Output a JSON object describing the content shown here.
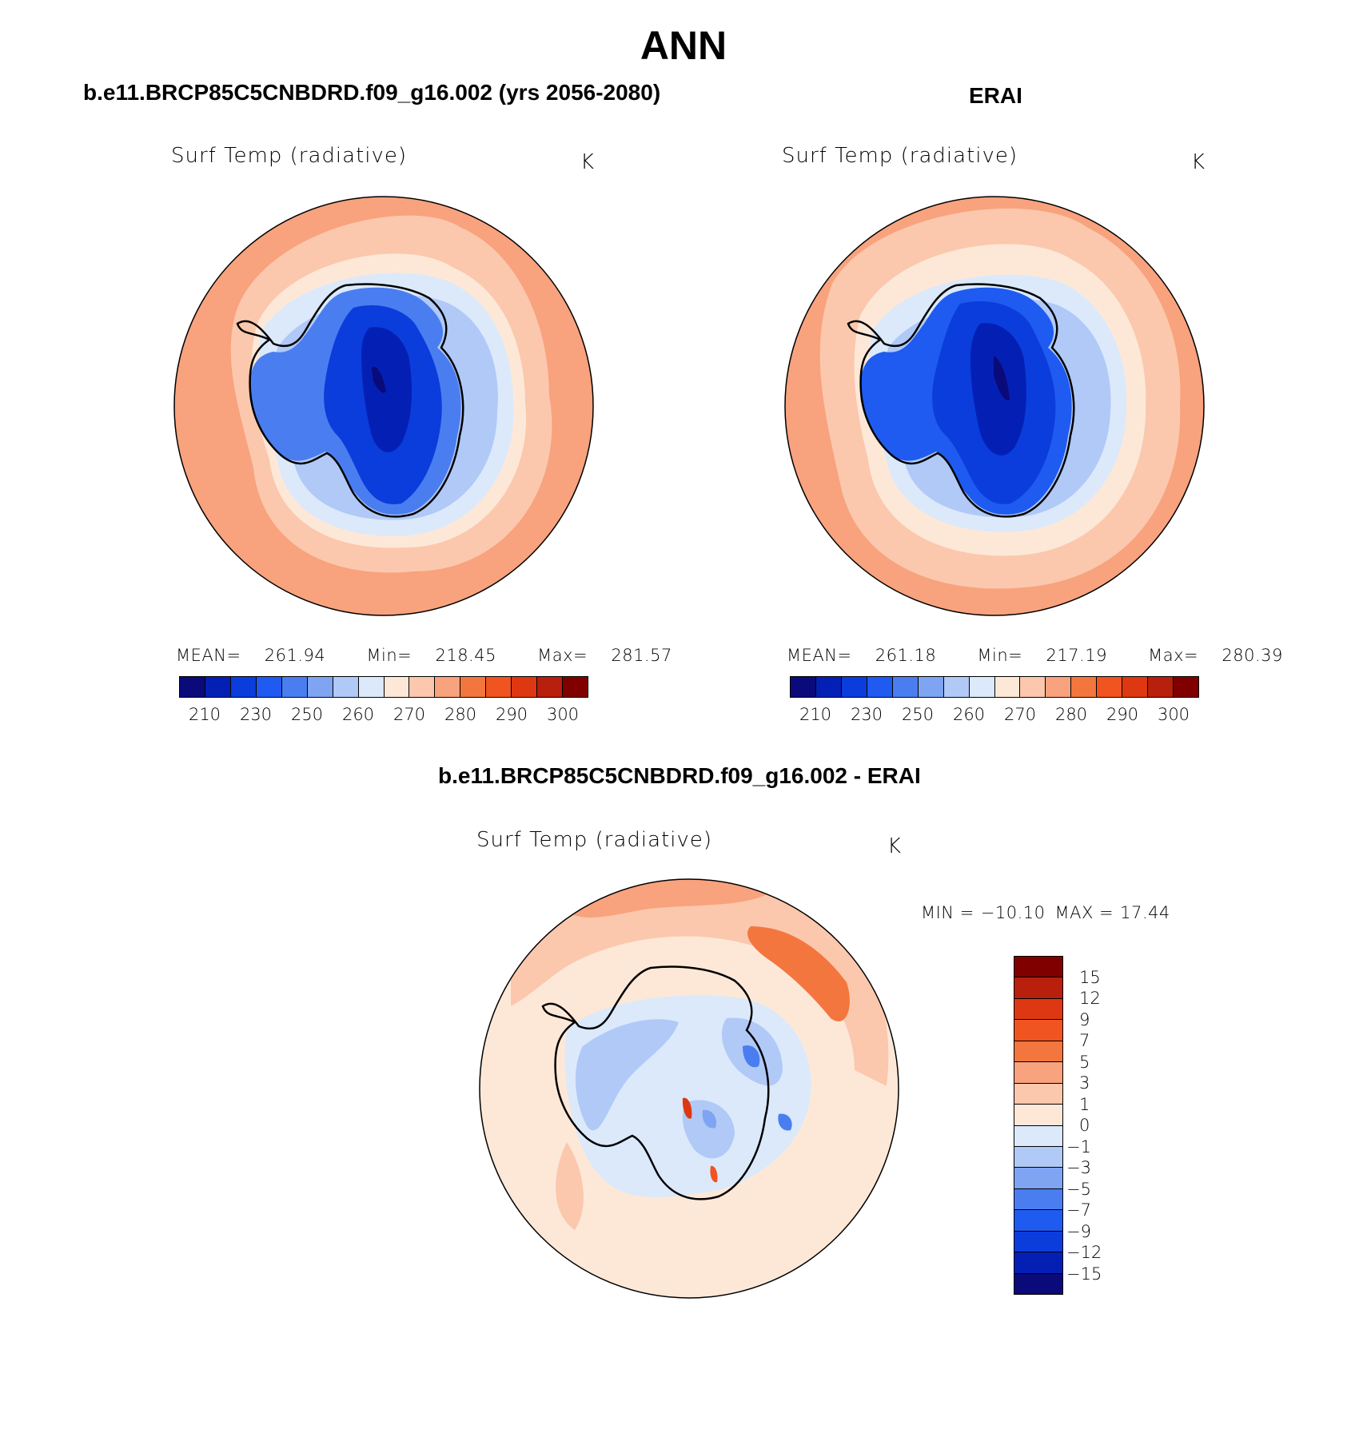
{
  "title": "ANN",
  "panels": {
    "model": {
      "title": "b.e11.BRCP85C5CNBDRD.f09_g16.002 (yrs 2056-2080)",
      "variable": "Surf Temp (radiative)",
      "units": "K",
      "mean": "261.94",
      "min": "218.45",
      "max": "281.57",
      "mean_label": "MEAN=",
      "min_label": "Min=",
      "max_label": "Max="
    },
    "obs": {
      "title": "ERAI",
      "variable": "Surf Temp (radiative)",
      "units": "K",
      "mean": "261.18",
      "min": "217.19",
      "max": "280.39",
      "mean_label": "MEAN=",
      "min_label": "Min=",
      "max_label": "Max="
    },
    "diff": {
      "title": "b.e11.BRCP85C5CNBDRD.f09_g16.002 - ERAI",
      "variable": "Surf Temp (radiative)",
      "units": "K",
      "min_label": "MIN =",
      "min": "−10.10",
      "max_label": "MAX =",
      "max": "17.44"
    }
  },
  "colorbar_abs": {
    "ticks": [
      "210",
      "230",
      "250",
      "260",
      "270",
      "280",
      "290",
      "300"
    ],
    "colors": [
      "#0a0a7a",
      "#0420b4",
      "#0b3ddc",
      "#1f5bf0",
      "#4a7ef0",
      "#7fa4f2",
      "#b0c9f7",
      "#dbe9fb",
      "#fde8d8",
      "#fbc8ad",
      "#f8a27e",
      "#f4763f",
      "#f05420",
      "#de3812",
      "#b81f0c",
      "#800000"
    ]
  },
  "colorbar_diff": {
    "ticks": [
      "15",
      "12",
      "9",
      "7",
      "5",
      "3",
      "1",
      "0",
      "−1",
      "−3",
      "−5",
      "−7",
      "−9",
      "−12",
      "−15"
    ],
    "colors": [
      "#800000",
      "#b81f0c",
      "#de3812",
      "#f05420",
      "#f4763f",
      "#f8a27e",
      "#fbc8ad",
      "#fde8d8",
      "#dbe9fb",
      "#b0c9f7",
      "#7fa4f2",
      "#4a7ef0",
      "#1f5bf0",
      "#0b3ddc",
      "#0420b4",
      "#0a0a7a"
    ]
  },
  "map_colors": {
    "ocean_warm": "#f8a27e",
    "ocean_mild": "#fbc8ad",
    "ocean_cool": "#fde8d8",
    "ice_edge": "#dbe9fb",
    "ice": "#b0c9f7",
    "coast": "#7fa4f2",
    "interior1": "#4a7ef0",
    "interior2": "#1f5bf0",
    "interior3": "#0b3ddc",
    "interior4": "#0420b4",
    "diff_warm": "#f8a27e",
    "diff_mild": "#fbc8ad",
    "diff_neutral": "#fde8d8",
    "diff_cool": "#dbe9fb",
    "diff_cold": "#b0c9f7",
    "diff_colder": "#7fa4f2"
  }
}
